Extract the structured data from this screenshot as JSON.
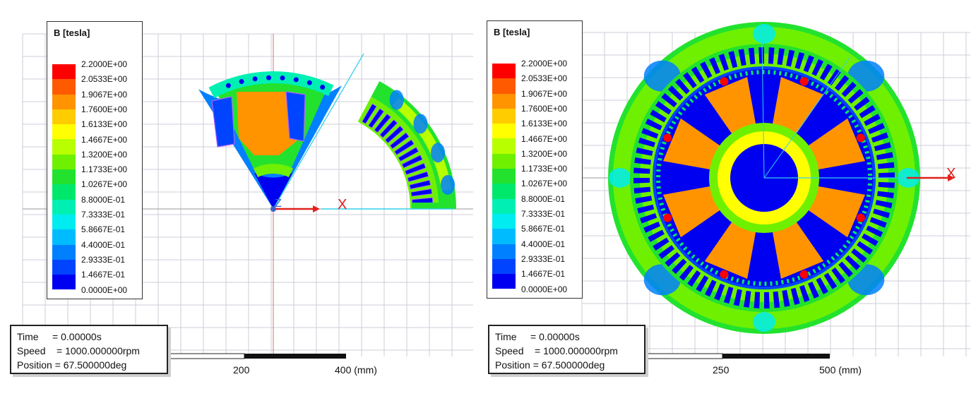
{
  "colors": {
    "background": "#ffffff",
    "grid": "#cccdd8",
    "axis_line": "#d37272",
    "axis_x_arrow": "#e0201a",
    "coord_line": "#33d0ee",
    "coil_outline": "#b060ff"
  },
  "colormap": [
    {
      "range": "2.0533E+00 - 2.2000E+00",
      "color": "#ff0000"
    },
    {
      "range": "1.9067E+00 - 2.0533E+00",
      "color": "#ff5a00"
    },
    {
      "range": "1.7600E+00 - 1.9067E+00",
      "color": "#ff9400"
    },
    {
      "range": "1.6133E+00 - 1.7600E+00",
      "color": "#ffcc00"
    },
    {
      "range": "1.4667E+00 - 1.6133E+00",
      "color": "#ffff00"
    },
    {
      "range": "1.3200E+00 - 1.4667E+00",
      "color": "#b8ff00"
    },
    {
      "range": "1.1733E+00 - 1.3200E+00",
      "color": "#6ff000"
    },
    {
      "range": "1.0267E+00 - 1.1733E+00",
      "color": "#22e22e"
    },
    {
      "range": "8.8000E-01 - 1.0267E+00",
      "color": "#00e86c"
    },
    {
      "range": "7.3333E-01 - 8.8000E-01",
      "color": "#00f0b4"
    },
    {
      "range": "5.8667E-01 - 7.3333E-01",
      "color": "#00ecf0"
    },
    {
      "range": "4.4000E-01 - 5.8667E-01",
      "color": "#00bcff"
    },
    {
      "range": "2.9333E-01 - 4.4000E-01",
      "color": "#0080ff"
    },
    {
      "range": "1.4667E-01 - 2.9333E-01",
      "color": "#0044ff"
    },
    {
      "range": "0.0000E+00 - 1.4667E-01",
      "color": "#0000f0"
    }
  ],
  "left": {
    "legend": {
      "title": "B [tesla]",
      "ticks": [
        "2.2000E+00",
        "2.0533E+00",
        "1.9067E+00",
        "1.7600E+00",
        "1.6133E+00",
        "1.4667E+00",
        "1.3200E+00",
        "1.1733E+00",
        "1.0267E+00",
        "8.8000E-01",
        "7.3333E-01",
        "5.8667E-01",
        "4.4000E-01",
        "2.9333E-01",
        "1.4667E-01",
        "0.0000E+00"
      ]
    },
    "info": {
      "time": "Time     = 0.00000s",
      "speed": "Speed    = 1000.000000rpm",
      "position": "Position = 67.500000deg"
    },
    "scale": {
      "labels": [
        "200",
        "400 (mm)"
      ]
    },
    "axes": {
      "x_label": "X",
      "z_label": "Z"
    }
  },
  "right": {
    "legend": {
      "title": "B [tesla]",
      "ticks": [
        "2.2000E+00",
        "2.0533E+00",
        "1.9067E+00",
        "1.7600E+00",
        "1.6133E+00",
        "1.4667E+00",
        "1.3200E+00",
        "1.1733E+00",
        "1.0267E+00",
        "8.8000E-01",
        "7.3333E-01",
        "5.8667E-01",
        "4.4000E-01",
        "2.9333E-01",
        "1.4667E-01",
        "0.0000E+00"
      ]
    },
    "info": {
      "time": "Time     = 0.00000s",
      "speed": "Speed    = 1000.000000rpm",
      "position": "Position = 67.500000deg"
    },
    "scale": {
      "labels": [
        "250",
        "500 (mm)"
      ]
    },
    "axes": {
      "x_label": "X"
    }
  }
}
